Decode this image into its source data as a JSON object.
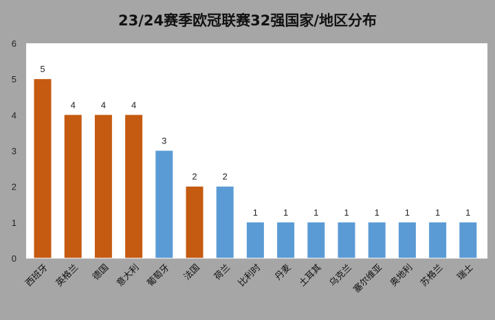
{
  "colors": {
    "background": "#a6a6a6",
    "plot_area": "#ffffff",
    "bar_orange": "#c55a11",
    "bar_blue": "#5b9bd5"
  },
  "chart_data": {
    "type": "bar",
    "title": "23/24赛季欧冠联赛32强国家/地区分布",
    "xlabel": "",
    "ylabel": "",
    "ylim": [
      0,
      6
    ],
    "yticks": [
      0,
      1,
      2,
      3,
      4,
      5,
      6
    ],
    "grid": false,
    "legend": "none",
    "categories": [
      "西班牙",
      "英格兰",
      "德国",
      "意大利",
      "葡萄牙",
      "法国",
      "荷兰",
      "比利时",
      "丹麦",
      "土耳其",
      "乌克兰",
      "塞尔维亚",
      "奥地利",
      "苏格兰",
      "瑞士"
    ],
    "values": [
      5,
      4,
      4,
      4,
      3,
      2,
      2,
      1,
      1,
      1,
      1,
      1,
      1,
      1,
      1
    ],
    "bar_colors": [
      "#c55a11",
      "#c55a11",
      "#c55a11",
      "#c55a11",
      "#5b9bd5",
      "#c55a11",
      "#5b9bd5",
      "#5b9bd5",
      "#5b9bd5",
      "#5b9bd5",
      "#5b9bd5",
      "#5b9bd5",
      "#5b9bd5",
      "#5b9bd5",
      "#5b9bd5"
    ],
    "data_labels": true
  }
}
